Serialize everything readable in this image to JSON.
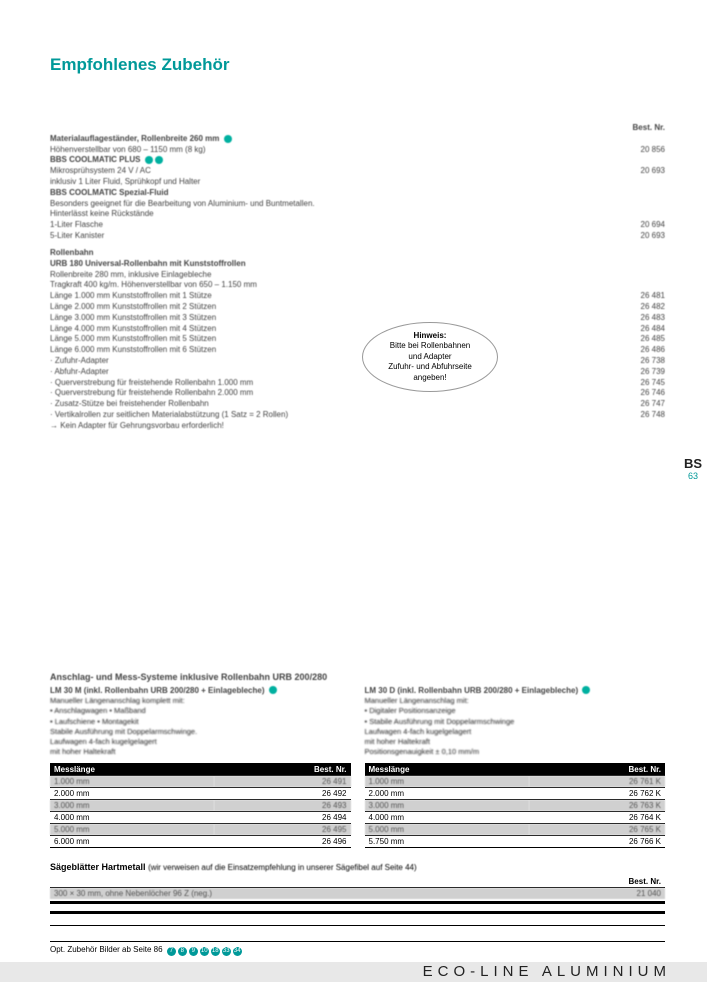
{
  "title": "Empfohlenes Zubehör",
  "header_right": {
    "label": "Best. Nr."
  },
  "section1": [
    {
      "left_b": "Materialauflageständer, Rollenbreite 260 mm",
      "dot": true,
      "left2": "Höhenverstellbar von 680 – 1150 mm (8 kg)",
      "right": "20 856"
    },
    {
      "left_b": "BBS COOLMATIC PLUS",
      "dot2": true,
      "left2": "Mikrosprühsystem 24 V / AC",
      "left3": "inklusiv 1 Liter Fluid, Sprühkopf und Halter",
      "right": "20 693"
    },
    {
      "left_b": "BBS COOLMATIC Spezial-Fluid",
      "left2": "Besonders geeignet für die Bearbeitung von Aluminium- und Buntmetallen.",
      "left3": "Hinterlässt keine Rückstände"
    },
    {
      "left": "1-Liter Flasche",
      "right": "20 694"
    },
    {
      "left": "5-Liter Kanister",
      "right": "20 693"
    }
  ],
  "rollenbahn": {
    "title": "Rollenbahn",
    "intro": [
      "URB 180 Universal-Rollenbahn mit Kunststoffrollen",
      "Rollenbreite 280 mm, inklusive Einlagebleche",
      "Tragkraft 400 kg/m. Höhenverstellbar von 650 – 1.150 mm"
    ],
    "items": [
      {
        "left": "Länge 1.000 mm Kunststoffrollen mit 1 Stütze",
        "right": "26 481"
      },
      {
        "left": "Länge 2.000 mm Kunststoffrollen mit 2 Stützen",
        "right": "26 482"
      },
      {
        "left": "Länge 3.000 mm Kunststoffrollen mit 3 Stützen",
        "right": "26 483"
      },
      {
        "left": "Länge 4.000 mm Kunststoffrollen mit 4 Stützen",
        "right": "26 484"
      },
      {
        "left": "Länge 5.000 mm Kunststoffrollen mit 5 Stützen",
        "right": "26 485"
      },
      {
        "left": "Länge 6.000 mm Kunststoffrollen mit 6 Stützen",
        "right": "26 486"
      },
      {
        "left": "· Zufuhr-Adapter",
        "right": "26 738"
      },
      {
        "left": "· Abfuhr-Adapter",
        "right": "26 739"
      },
      {
        "left": "· Querverstrebung für freistehende Rollenbahn 1.000 mm",
        "right": "26 745"
      },
      {
        "left": "· Querverstrebung für freistehende Rollenbahn 2.000 mm",
        "right": "26 746"
      },
      {
        "left": "· Zusatz-Stütze bei freistehender Rollenbahn",
        "right": "26 747"
      },
      {
        "left": "· Vertikalrollen zur seitlichen Materialabstützung (1 Satz = 2 Rollen)",
        "right": "26 748"
      },
      {
        "left": "→ Kein Adapter für Gehrungsvorbau erforderlich!",
        "right": ""
      }
    ]
  },
  "hint": {
    "title": "Hinweis:",
    "lines": [
      "Bitte bei Rollenbahnen",
      "und Adapter",
      "Zufuhr- und Abfuhrseite",
      "angeben!"
    ]
  },
  "side": {
    "bs": "BS",
    "num": "63"
  },
  "lower": {
    "title": "Anschlag- und Mess-Systeme inklusive Rollenbahn URB 200/280",
    "left_head": "LM 30 M (inkl. Rollenbahn URB 200/280 + Einlagebleche)",
    "right_head": "LM 30 D (inkl. Rollenbahn URB 200/280 + Einlagebleche)",
    "left_desc": [
      "Manueller Längenanschlag komplett mit:",
      "• Anschlagwagen          • Maßband",
      "• Laufschiene               • Montagekit",
      "Stabile Ausführung mit Doppelarmschwinge.",
      "Laufwagen 4-fach kugelgelagert",
      "mit hoher Haltekraft"
    ],
    "right_desc": [
      "Manueller Längenanschlag mit:",
      "• Digitaler Positionsanzeige",
      "• Stabile Ausführung mit Doppelarmschwinge",
      "Laufwagen 4-fach kugelgelagert",
      "mit hoher Haltekraft",
      "Positionsgenauigkeit ± 0,10 mm/m"
    ]
  },
  "table_headers": {
    "col1": "Messlänge",
    "col2": "Best. Nr."
  },
  "table_left": [
    {
      "l": "1.000 mm",
      "r": "26 491",
      "shade": true
    },
    {
      "l": "2.000 mm",
      "r": "26 492"
    },
    {
      "l": "3.000 mm",
      "r": "26 493",
      "shade": true
    },
    {
      "l": "4.000 mm",
      "r": "26 494"
    },
    {
      "l": "5.000 mm",
      "r": "26 495",
      "shade": true
    },
    {
      "l": "6.000 mm",
      "r": "26 496"
    }
  ],
  "table_right": [
    {
      "l": "1.000 mm",
      "r": "26 761 K",
      "shade": true
    },
    {
      "l": "2.000 mm",
      "r": "26 762 K"
    },
    {
      "l": "3.000 mm",
      "r": "26 763 K",
      "shade": true
    },
    {
      "l": "4.000 mm",
      "r": "26 764 K"
    },
    {
      "l": "5.000 mm",
      "r": "26 765 K",
      "shade": true
    },
    {
      "l": "5.750 mm",
      "r": "26 766 K"
    }
  ],
  "saw": {
    "title": "Sägeblätter Hartmetall",
    "sub": "(wir verweisen auf die Einsatzempfehlung in unserer Sägefibel auf Seite 44)",
    "header": "Best. Nr.",
    "rows": [
      {
        "l": "300 × 30 mm, ohne Nebenlöcher 96 Z (neg.)",
        "r": "21 040",
        "shade": true
      }
    ]
  },
  "opt": {
    "text": "Opt. Zubehör Bilder ab Seite 86",
    "badges": [
      "7",
      "8",
      "9",
      "10",
      "18",
      "33",
      "34"
    ]
  },
  "brand": "ECO-LINE ALUMINIUM"
}
